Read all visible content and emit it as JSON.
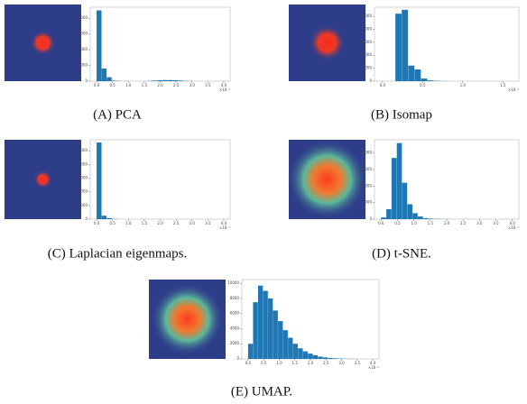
{
  "chart_data": [
    {
      "type": "histogram",
      "title": "(A) PCA",
      "x_multiplier": "×10⁻¹",
      "color": "#1f77b4",
      "bins": [
        0,
        0.16,
        0.32,
        0.48,
        0.64,
        0.8,
        0.96,
        1.12,
        1.28,
        1.44,
        1.6,
        1.76,
        1.92,
        2.08,
        2.24,
        2.4,
        2.56,
        2.72,
        2.88,
        3.04,
        3.2,
        3.36,
        3.52,
        3.68,
        3.84,
        4.0
      ],
      "values": [
        45000,
        8000,
        2500,
        300,
        100,
        50,
        0,
        0,
        0,
        0,
        200,
        400,
        600,
        700,
        700,
        600,
        400,
        200,
        100,
        0,
        0,
        0,
        0,
        0,
        0
      ],
      "xlim": [
        -0.2,
        4.2
      ],
      "xticks": [
        0.0,
        0.5,
        1.0,
        1.5,
        2.0,
        2.5,
        3.0,
        3.5,
        4.0
      ],
      "ylim": [
        0,
        47000
      ],
      "yticks": [
        0,
        10000,
        20000,
        30000,
        40000
      ]
    },
    {
      "type": "histogram",
      "title": "(B) Isomap",
      "x_multiplier": "×10⁻¹",
      "color": "#1f77b4",
      "bins": [
        0,
        0.08,
        0.16,
        0.24,
        0.32,
        0.4,
        0.48,
        0.56,
        0.64,
        0.72,
        0.8,
        0.88,
        0.96,
        1.04,
        1.12,
        1.2,
        1.28,
        1.36,
        1.44,
        1.52,
        1.6
      ],
      "values": [
        0,
        0,
        26000,
        27500,
        6000,
        4500,
        1000,
        300,
        100,
        50,
        0,
        0,
        0,
        0,
        0,
        0,
        0,
        0,
        0,
        0
      ],
      "xlim": [
        -0.1,
        1.7
      ],
      "xticks": [
        0.0,
        0.5,
        1.0,
        1.5
      ],
      "ylim": [
        0,
        28500
      ],
      "yticks": [
        0,
        5000,
        10000,
        15000,
        20000,
        25000
      ]
    },
    {
      "type": "histogram",
      "title": "(C) Laplacian eigenmaps.",
      "x_multiplier": "×10⁻¹",
      "color": "#1f77b4",
      "bins": [
        0,
        0.16,
        0.32,
        0.48,
        0.64,
        0.8,
        0.96,
        1.12,
        1.28,
        1.44,
        1.6,
        1.76,
        1.92,
        2.08,
        2.24,
        2.4,
        2.56,
        2.72,
        2.88,
        3.04,
        3.2,
        3.36,
        3.52,
        3.68,
        3.84,
        4.0
      ],
      "values": [
        56000,
        2500,
        800,
        200,
        0,
        0,
        0,
        0,
        0,
        0,
        0,
        0,
        0,
        0,
        0,
        0,
        0,
        0,
        0,
        0,
        0,
        0,
        0,
        0,
        0
      ],
      "xlim": [
        -0.2,
        4.2
      ],
      "xticks": [
        0.0,
        0.5,
        1.0,
        1.5,
        2.0,
        2.5,
        3.0,
        3.5,
        4.0
      ],
      "ylim": [
        0,
        58000
      ],
      "yticks": [
        0,
        10000,
        20000,
        30000,
        40000,
        50000
      ]
    },
    {
      "type": "histogram",
      "title": "(D) t-SNE.",
      "x_multiplier": "×10⁻¹",
      "color": "#1f77b4",
      "bins": [
        0,
        0.16,
        0.32,
        0.48,
        0.64,
        0.8,
        0.96,
        1.12,
        1.28,
        1.44,
        1.6,
        1.76,
        1.92,
        2.08,
        2.24,
        2.4,
        2.56,
        2.72,
        2.88,
        3.04,
        3.2,
        3.36,
        3.52,
        3.68,
        3.84,
        4.0
      ],
      "values": [
        500,
        3000,
        18500,
        23000,
        11000,
        4500,
        1800,
        800,
        300,
        150,
        80,
        40,
        20,
        0,
        0,
        0,
        0,
        0,
        0,
        0,
        0,
        0,
        0,
        0,
        0
      ],
      "xlim": [
        -0.2,
        4.2
      ],
      "xticks": [
        0.0,
        0.5,
        1.0,
        1.5,
        2.0,
        2.5,
        3.0,
        3.5,
        4.0
      ],
      "ylim": [
        0,
        24000
      ],
      "yticks": [
        0,
        5000,
        10000,
        15000,
        20000
      ]
    },
    {
      "type": "histogram",
      "title": "(E) UMAP.",
      "x_multiplier": "×10⁻¹",
      "color": "#1f77b4",
      "bins": [
        0,
        0.16,
        0.32,
        0.48,
        0.64,
        0.8,
        0.96,
        1.12,
        1.28,
        1.44,
        1.6,
        1.76,
        1.92,
        2.08,
        2.24,
        2.4,
        2.56,
        2.72,
        2.88,
        3.04,
        3.2,
        3.36,
        3.52,
        3.68,
        3.84,
        4.0
      ],
      "values": [
        2000,
        7500,
        9700,
        9000,
        8000,
        6400,
        5000,
        3800,
        2800,
        2000,
        1400,
        1000,
        700,
        500,
        300,
        200,
        120,
        80,
        50,
        30,
        20,
        10,
        0,
        0,
        0
      ],
      "xlim": [
        -0.2,
        4.2
      ],
      "xticks": [
        0.0,
        0.5,
        1.0,
        1.5,
        2.0,
        2.5,
        3.0,
        3.5,
        4.0
      ],
      "ylim": [
        0,
        10500
      ],
      "yticks": [
        0,
        2000,
        4000,
        6000,
        8000,
        10000
      ]
    }
  ]
}
